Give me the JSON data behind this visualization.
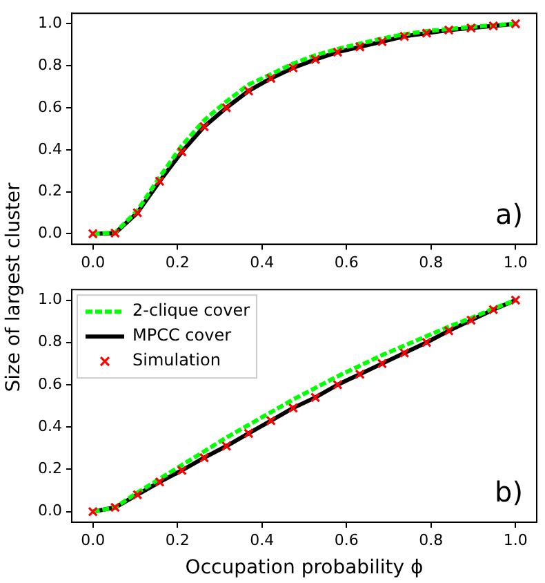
{
  "chart_data": [
    {
      "type": "line",
      "ylabel": "Size of largest cluster",
      "annotations": [
        "a)"
      ],
      "legend": false,
      "grid": false,
      "x": [
        0,
        0.0526,
        0.1053,
        0.1579,
        0.2105,
        0.2632,
        0.3158,
        0.3684,
        0.4211,
        0.4737,
        0.5263,
        0.5789,
        0.6316,
        0.6842,
        0.7368,
        0.7895,
        0.8421,
        0.8947,
        0.9474,
        1
      ],
      "xlim": [
        -0.05,
        1.05
      ],
      "ylim": [
        -0.05,
        1.05
      ],
      "xticks": [
        {
          "value": 0,
          "label": "0.0"
        },
        {
          "value": 0.2,
          "label": "0.2"
        },
        {
          "value": 0.4,
          "label": "0.4"
        },
        {
          "value": 0.6,
          "label": "0.6"
        },
        {
          "value": 0.8,
          "label": "0.8"
        },
        {
          "value": 1,
          "label": "1.0"
        }
      ],
      "yticks": [
        {
          "value": 0,
          "label": "0.0"
        },
        {
          "value": 0.2,
          "label": "0.2"
        },
        {
          "value": 0.4,
          "label": "0.4"
        },
        {
          "value": 0.6,
          "label": "0.6"
        },
        {
          "value": 0.8,
          "label": "0.8"
        },
        {
          "value": 1,
          "label": "1.0"
        }
      ],
      "series": [
        {
          "color": "#00ff00",
          "line_style": "dashed",
          "marker": "none",
          "values": [
            0,
            0.005,
            0.11,
            0.27,
            0.42,
            0.54,
            0.63,
            0.71,
            0.76,
            0.81,
            0.85,
            0.88,
            0.905,
            0.93,
            0.95,
            0.965,
            0.975,
            0.985,
            0.993,
            1
          ]
        },
        {
          "color": "#000000",
          "line_style": "solid",
          "marker": "none",
          "values": [
            0,
            0.003,
            0.1,
            0.25,
            0.39,
            0.51,
            0.6,
            0.68,
            0.74,
            0.79,
            0.83,
            0.865,
            0.89,
            0.915,
            0.94,
            0.955,
            0.97,
            0.98,
            0.99,
            1
          ]
        },
        {
          "type": "scatter",
          "color": "#ff0000",
          "marker": "cross",
          "values": [
            0,
            0.003,
            0.1,
            0.25,
            0.39,
            0.51,
            0.6,
            0.68,
            0.74,
            0.79,
            0.83,
            0.865,
            0.89,
            0.915,
            0.94,
            0.955,
            0.97,
            0.98,
            0.99,
            1
          ]
        }
      ]
    },
    {
      "type": "line",
      "xlabel": "Occupation probability ϕ",
      "annotations": [
        "b)"
      ],
      "legend": "top left",
      "grid": false,
      "x": [
        0,
        0.0526,
        0.1053,
        0.1579,
        0.2105,
        0.2632,
        0.3158,
        0.3684,
        0.4211,
        0.4737,
        0.5263,
        0.5789,
        0.6316,
        0.6842,
        0.7368,
        0.7895,
        0.8421,
        0.8947,
        0.9474,
        1
      ],
      "xlim": [
        -0.05,
        1.05
      ],
      "ylim": [
        -0.05,
        1.05
      ],
      "xticks": [
        {
          "value": 0,
          "label": "0.0"
        },
        {
          "value": 0.2,
          "label": "0.2"
        },
        {
          "value": 0.4,
          "label": "0.4"
        },
        {
          "value": 0.6,
          "label": "0.6"
        },
        {
          "value": 0.8,
          "label": "0.8"
        },
        {
          "value": 1,
          "label": "1.0"
        }
      ],
      "yticks": [
        {
          "value": 0,
          "label": "0.0"
        },
        {
          "value": 0.2,
          "label": "0.2"
        },
        {
          "value": 0.4,
          "label": "0.4"
        },
        {
          "value": 0.6,
          "label": "0.6"
        },
        {
          "value": 0.8,
          "label": "0.8"
        },
        {
          "value": 1,
          "label": "1.0"
        }
      ],
      "series": [
        {
          "name": "2-clique cover",
          "color": "#00ff00",
          "line_style": "dashed",
          "marker": "none",
          "values": [
            0,
            0.02,
            0.09,
            0.155,
            0.22,
            0.285,
            0.35,
            0.41,
            0.47,
            0.53,
            0.585,
            0.64,
            0.69,
            0.74,
            0.785,
            0.83,
            0.875,
            0.915,
            0.96,
            1
          ]
        },
        {
          "name": "MPCC cover",
          "color": "#000000",
          "line_style": "solid",
          "marker": "none",
          "values": [
            0,
            0.02,
            0.08,
            0.14,
            0.195,
            0.255,
            0.31,
            0.37,
            0.43,
            0.49,
            0.54,
            0.6,
            0.65,
            0.7,
            0.75,
            0.8,
            0.855,
            0.905,
            0.955,
            1
          ]
        },
        {
          "name": "Simulation",
          "type": "scatter",
          "color": "#ff0000",
          "marker": "cross",
          "values": [
            0,
            0.02,
            0.08,
            0.14,
            0.195,
            0.255,
            0.31,
            0.37,
            0.43,
            0.49,
            0.54,
            0.6,
            0.65,
            0.7,
            0.75,
            0.8,
            0.855,
            0.905,
            0.955,
            1
          ]
        }
      ]
    }
  ]
}
